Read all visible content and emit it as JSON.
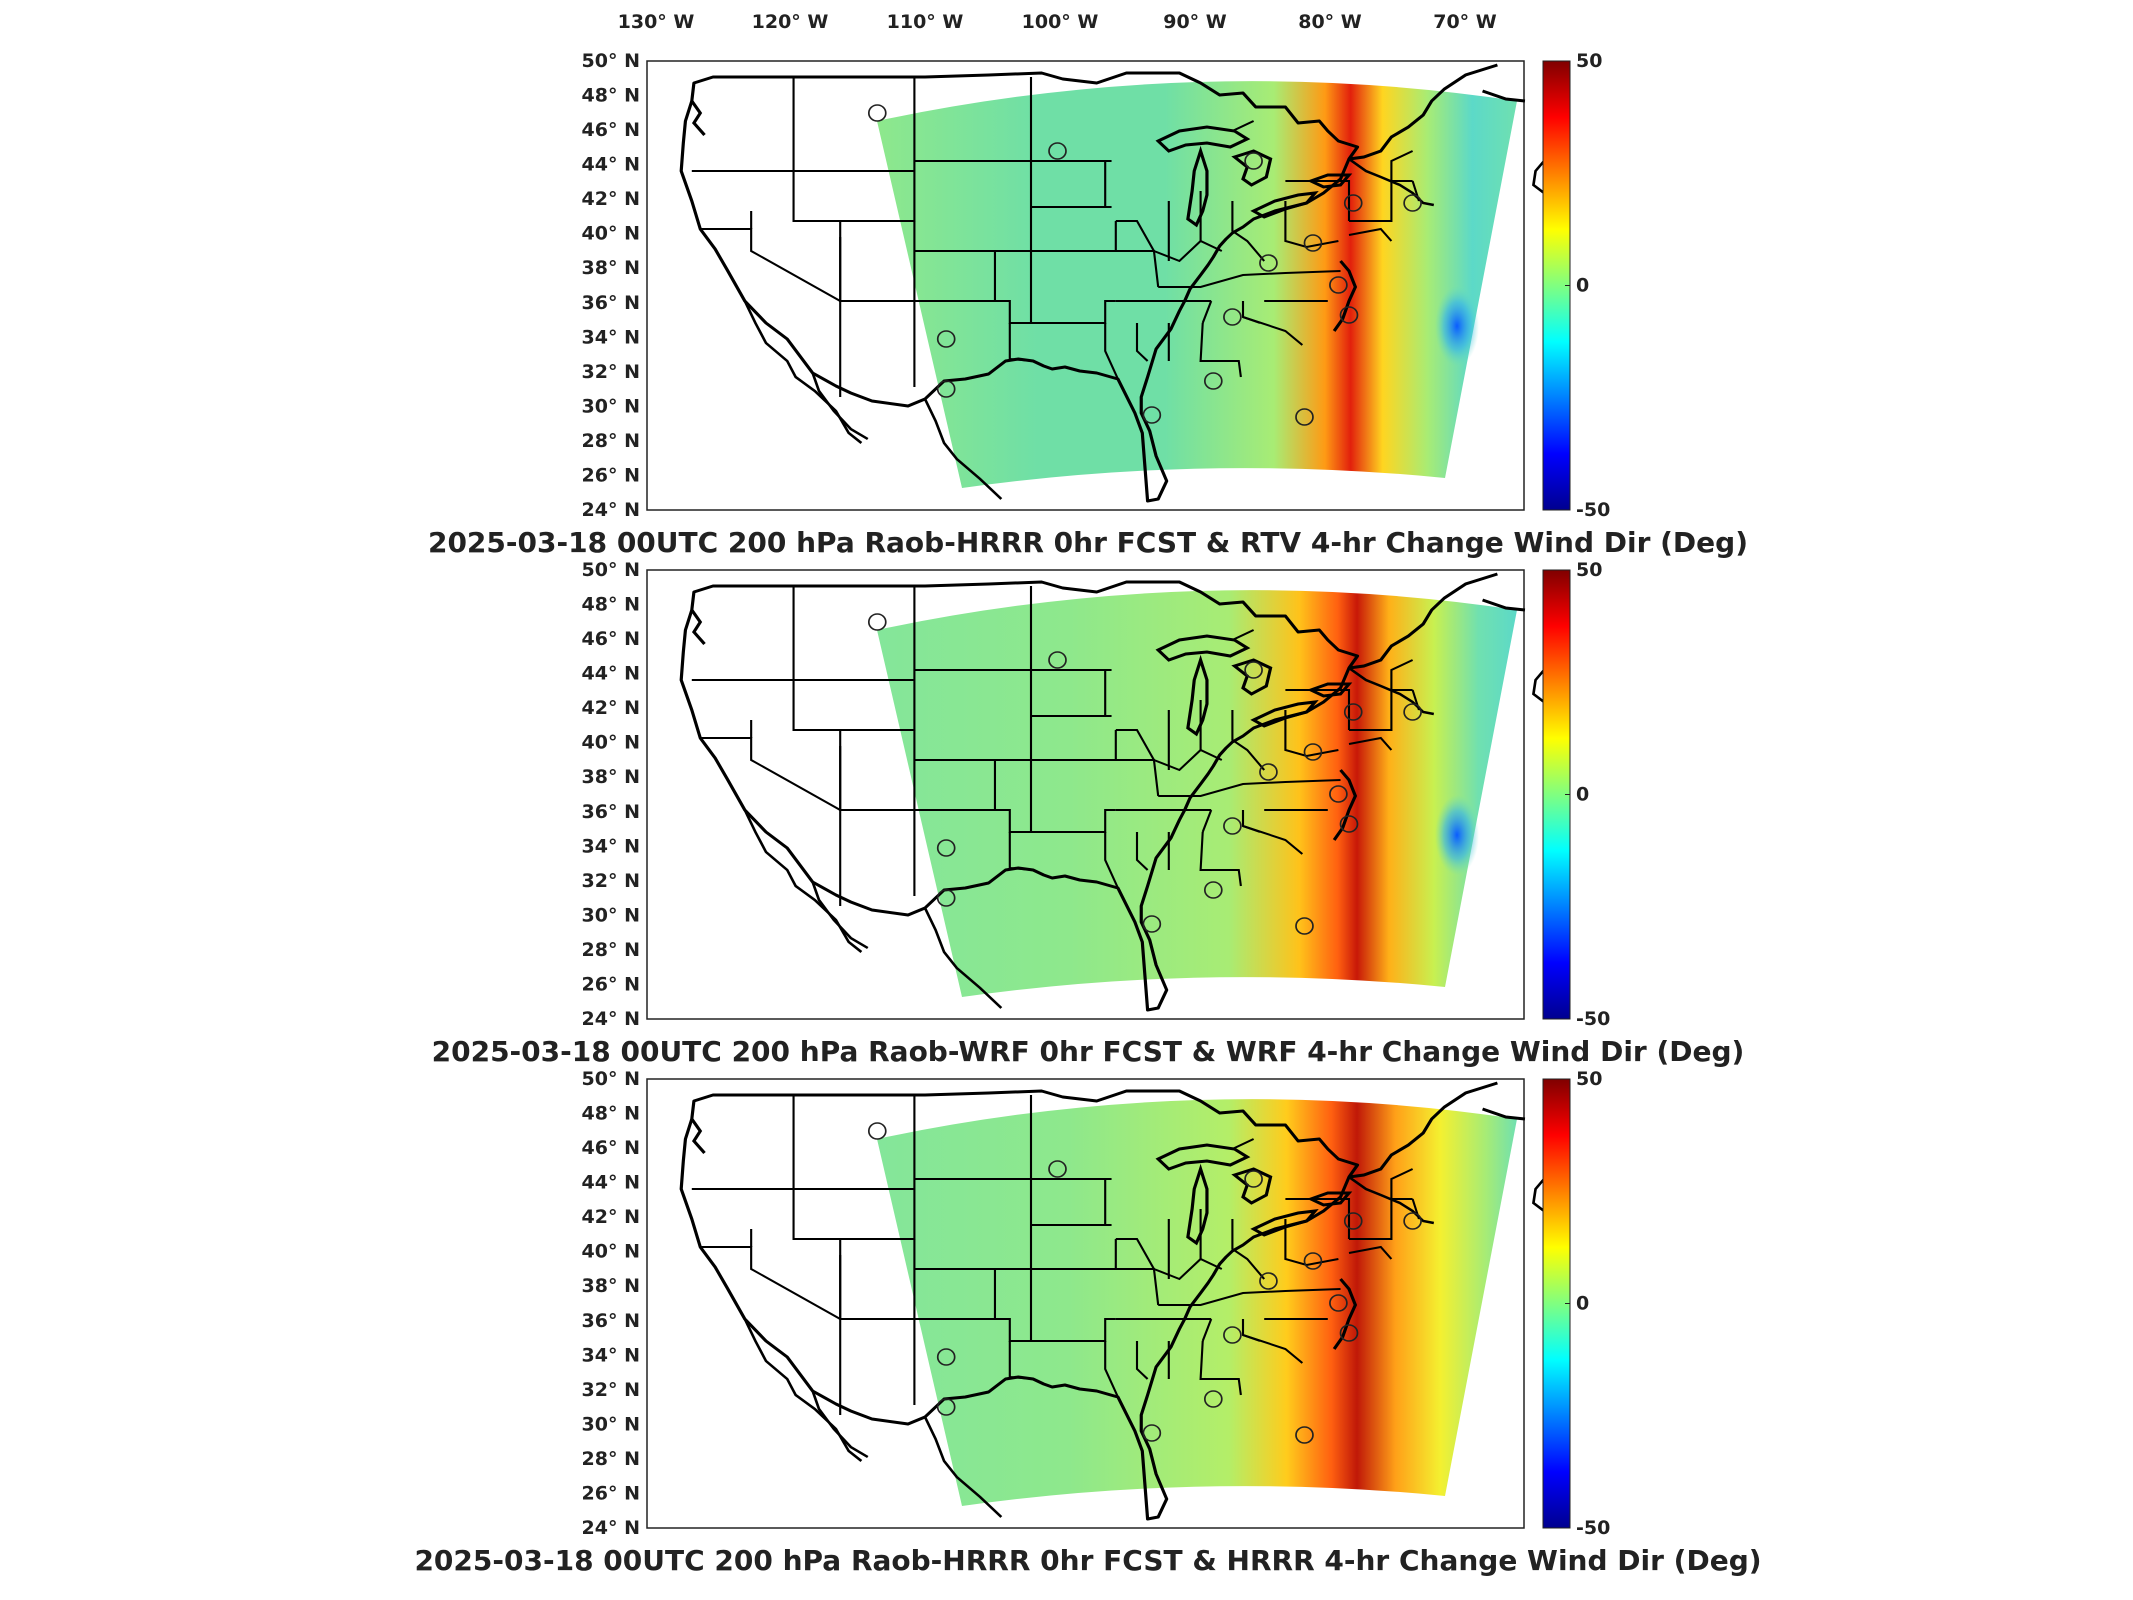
{
  "longitude_labels": [
    "130° W",
    "120° W",
    "110° W",
    "100° W",
    "90° W",
    "80° W",
    "70° W"
  ],
  "latitude_labels": [
    "50° N",
    "48° N",
    "46° N",
    "44° N",
    "42° N",
    "40° N",
    "38° N",
    "36° N",
    "34° N",
    "32° N",
    "30° N",
    "28° N",
    "26° N",
    "24° N"
  ],
  "colorbar": {
    "min": -50,
    "max": 50,
    "tick_labels": [
      "50",
      "0",
      "-50"
    ],
    "colors": [
      "#00008f",
      "#0000ff",
      "#0080ff",
      "#00ffff",
      "#80ff80",
      "#ffff00",
      "#ff8000",
      "#ff0000",
      "#800000"
    ]
  },
  "panels": [
    {
      "title": "2025-03-18 00UTC 200 hPa Raob-HRRR 0hr FCST & RTV 4-hr Change Wind Dir (Deg)",
      "model": "RTV"
    },
    {
      "title": "2025-03-18 00UTC 200 hPa Raob-WRF 0hr FCST & WRF 4-hr Change Wind Dir (Deg)",
      "model": "WRF"
    },
    {
      "title": "2025-03-18 00UTC 200 hPa Raob-HRRR 0hr FCST & HRRR 4-hr Change Wind Dir (Deg)",
      "model": "HRRR"
    }
  ]
}
